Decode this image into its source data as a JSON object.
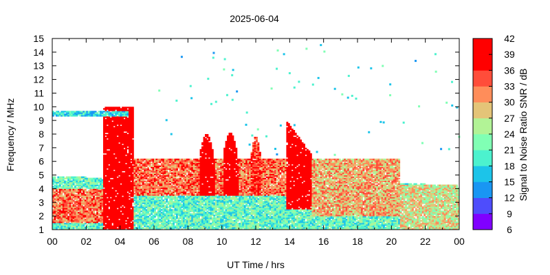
{
  "chart_data": {
    "type": "heatmap",
    "title": "2025-06-04",
    "xlabel": "UT Time / hrs",
    "ylabel": "Frequency / MHz",
    "colorbar_label": "Signal to Noise Ratio SNR / dB",
    "xlim": [
      0,
      24
    ],
    "ylim": [
      1,
      15
    ],
    "x_tick_labels": [
      "00",
      "02",
      "04",
      "06",
      "08",
      "10",
      "12",
      "14",
      "16",
      "18",
      "20",
      "22",
      "00"
    ],
    "y_tick_labels": [
      "1",
      "2",
      "3",
      "4",
      "5",
      "6",
      "7",
      "8",
      "9",
      "10",
      "11",
      "12",
      "13",
      "14",
      "15"
    ],
    "colorbar": {
      "min": 6,
      "max": 42,
      "step": 3,
      "tick_labels": [
        "6",
        "9",
        "12",
        "15",
        "18",
        "21",
        "24",
        "27",
        "30",
        "33",
        "36",
        "39",
        "42"
      ],
      "colors": [
        "#8000ff",
        "#4e4dfc",
        "#1996f3",
        "#1cc4e9",
        "#4cf2ce",
        "#80ffb4",
        "#b2f396",
        "#e4c478",
        "#ff8d5a",
        "#ff4d3a",
        "#ff0000",
        "#ff0000"
      ]
    },
    "regions": [
      {
        "name": "background-band",
        "t_start": 0,
        "t_end": 24,
        "f_low": 1.0,
        "f_high_start": 4.9,
        "f_high_end": 4.3,
        "snr": 21
      },
      {
        "name": "night-low-band",
        "t_start": 0,
        "t_end": 3,
        "f_low": 1.5,
        "f_high": 4.0,
        "snr": 33
      },
      {
        "name": "sporadic-e-burst-1",
        "t_start": 3.0,
        "t_end": 4.8,
        "f_low": 1.0,
        "f_high": 10.0,
        "snr": 42
      },
      {
        "name": "midday-band",
        "t_start": 4.8,
        "t_end": 16,
        "f_low": 3.5,
        "f_high": 6.2,
        "snr": 33
      },
      {
        "name": "spike-09",
        "t_center": 9.1,
        "width": 0.9,
        "f_top": 8.0,
        "snr": 42
      },
      {
        "name": "spike-10",
        "t_center": 10.5,
        "width": 0.9,
        "f_top": 8.1,
        "snr": 42
      },
      {
        "name": "spike-12",
        "t_center": 12.0,
        "width": 0.6,
        "f_top": 7.8,
        "snr": 36
      },
      {
        "name": "sporadic-e-burst-2",
        "t_start": 13.8,
        "t_end": 15.3,
        "f_low": 2.5,
        "f_high": 9.0,
        "snr": 42
      },
      {
        "name": "afternoon-band",
        "t_start": 15.3,
        "t_end": 20.5,
        "f_low": 2.0,
        "f_high": 6.2,
        "snr": 30
      },
      {
        "name": "evening-band",
        "t_start": 20.5,
        "t_end": 24,
        "f_low": 1.0,
        "f_high": 4.3,
        "snr": 27
      },
      {
        "name": "f-region-trace",
        "t_start": 0,
        "t_end": 4.5,
        "freq": 9.5,
        "snr": 18
      }
    ]
  }
}
